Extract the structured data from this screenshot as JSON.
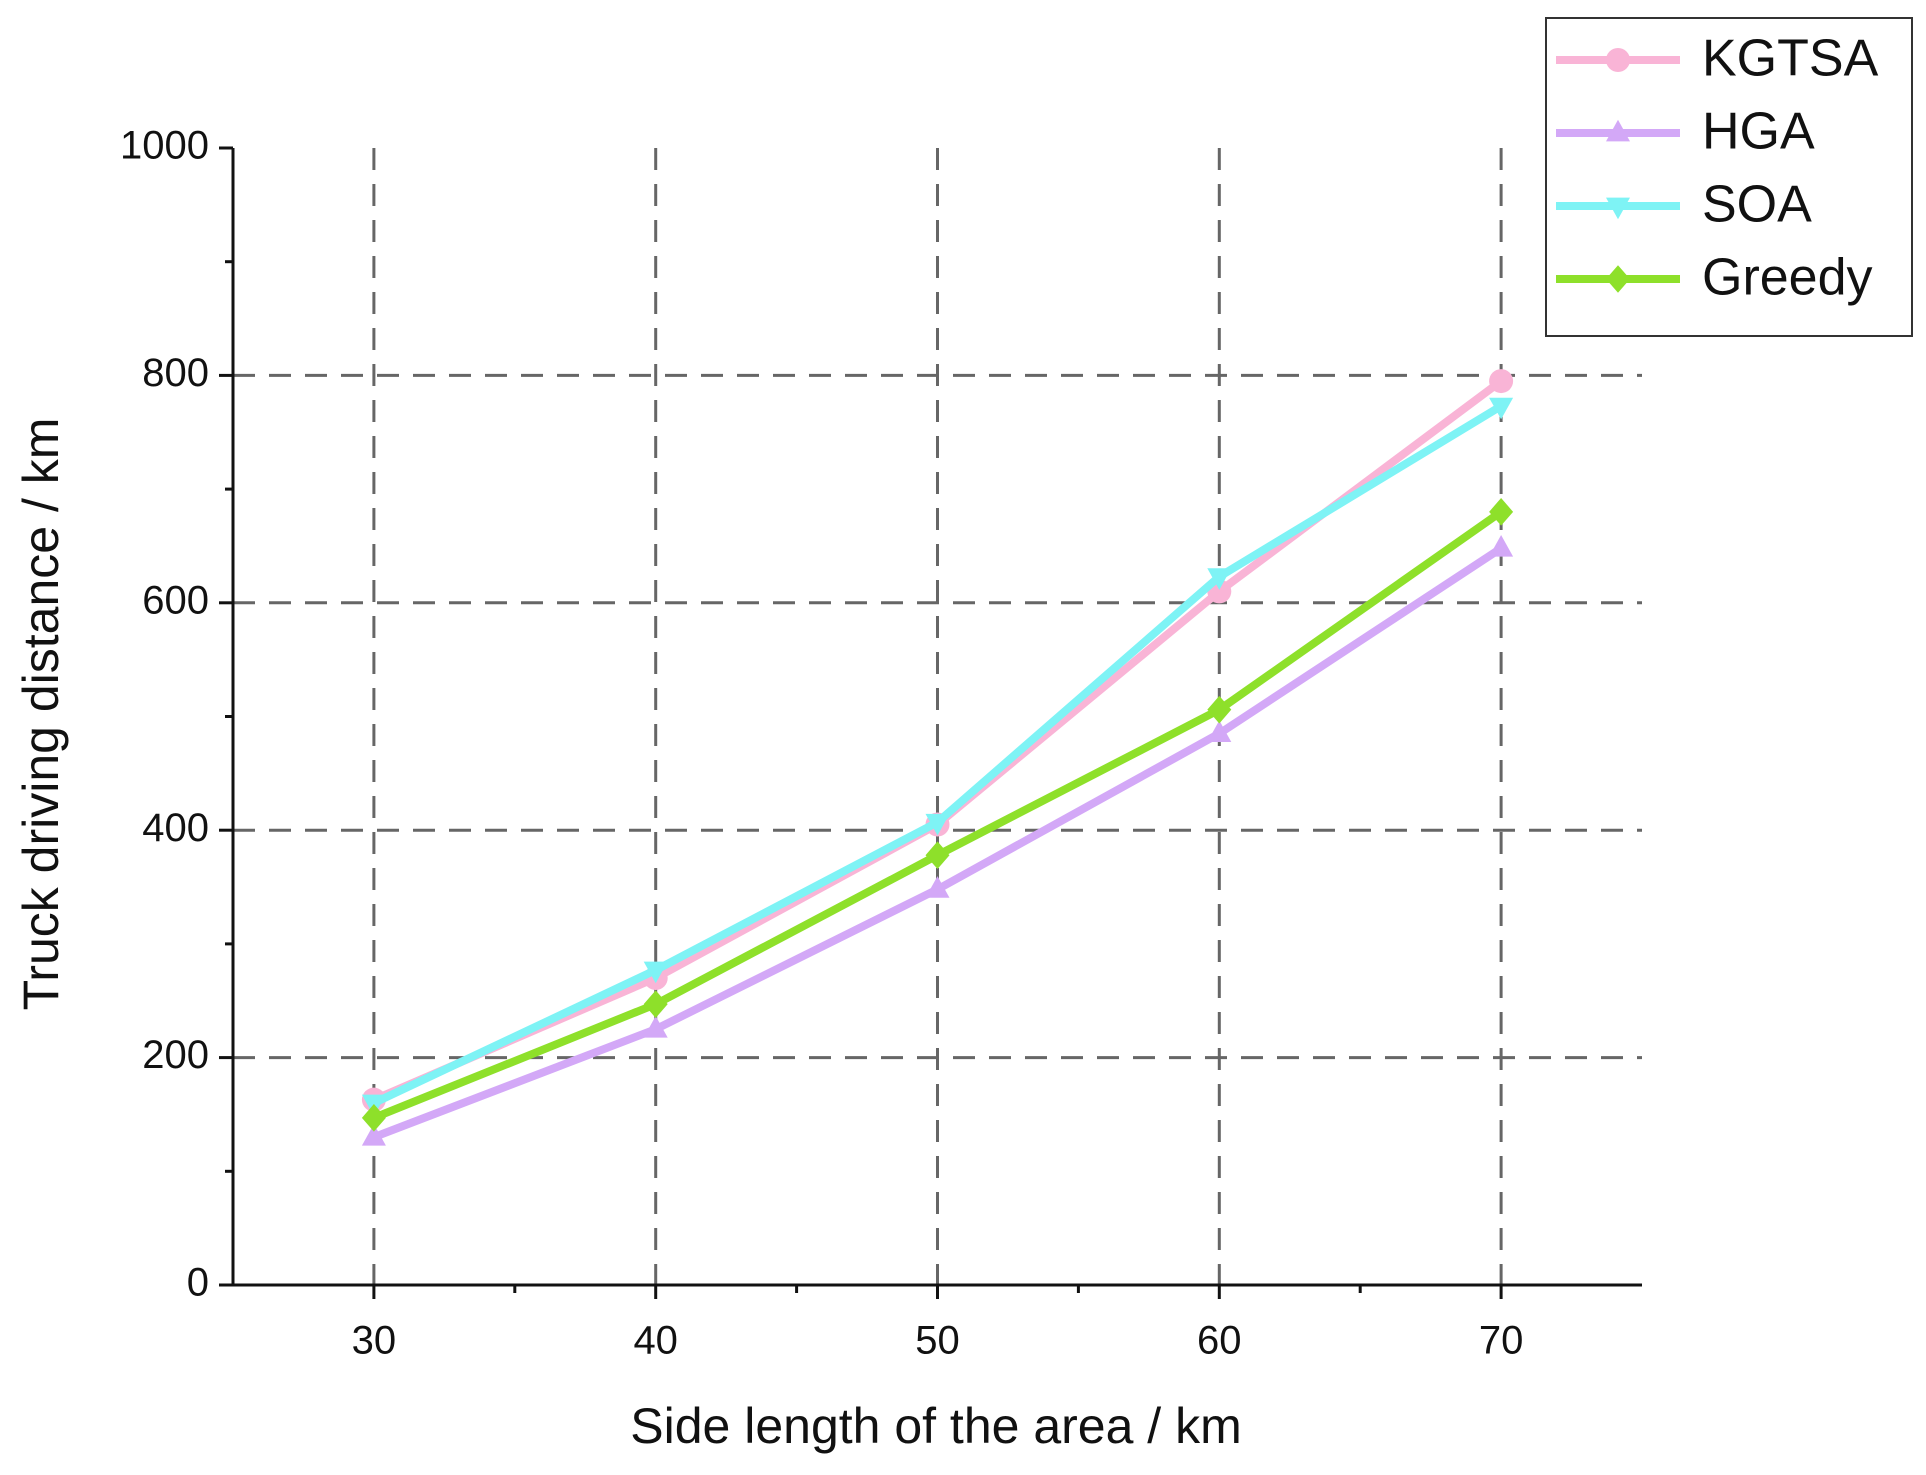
{
  "chart_data": {
    "type": "line",
    "x_label": "Side length of the area / km",
    "y_label": "Truck driving distance / km",
    "x": [
      30,
      40,
      50,
      60,
      70
    ],
    "series": [
      {
        "name": "KGTSA",
        "color": "#f9b4d6",
        "marker": "circle",
        "values": [
          163,
          270,
          405,
          610,
          795
        ]
      },
      {
        "name": "HGA",
        "color": "#d3a8f7",
        "marker": "triangle-up",
        "values": [
          130,
          225,
          348,
          485,
          648
        ]
      },
      {
        "name": "SOA",
        "color": "#7ef3f5",
        "marker": "triangle-down",
        "values": [
          160,
          277,
          407,
          623,
          773
        ]
      },
      {
        "name": "Greedy",
        "color": "#8ee02a",
        "marker": "diamond",
        "values": [
          147,
          247,
          378,
          506,
          680
        ]
      }
    ],
    "xlim": [
      25,
      75
    ],
    "xticks": [
      30,
      40,
      50,
      60,
      70
    ],
    "ylim": [
      0,
      1000
    ],
    "yticks": [
      0,
      200,
      400,
      600,
      800,
      1000
    ],
    "grid": true,
    "legend": "top-right"
  }
}
